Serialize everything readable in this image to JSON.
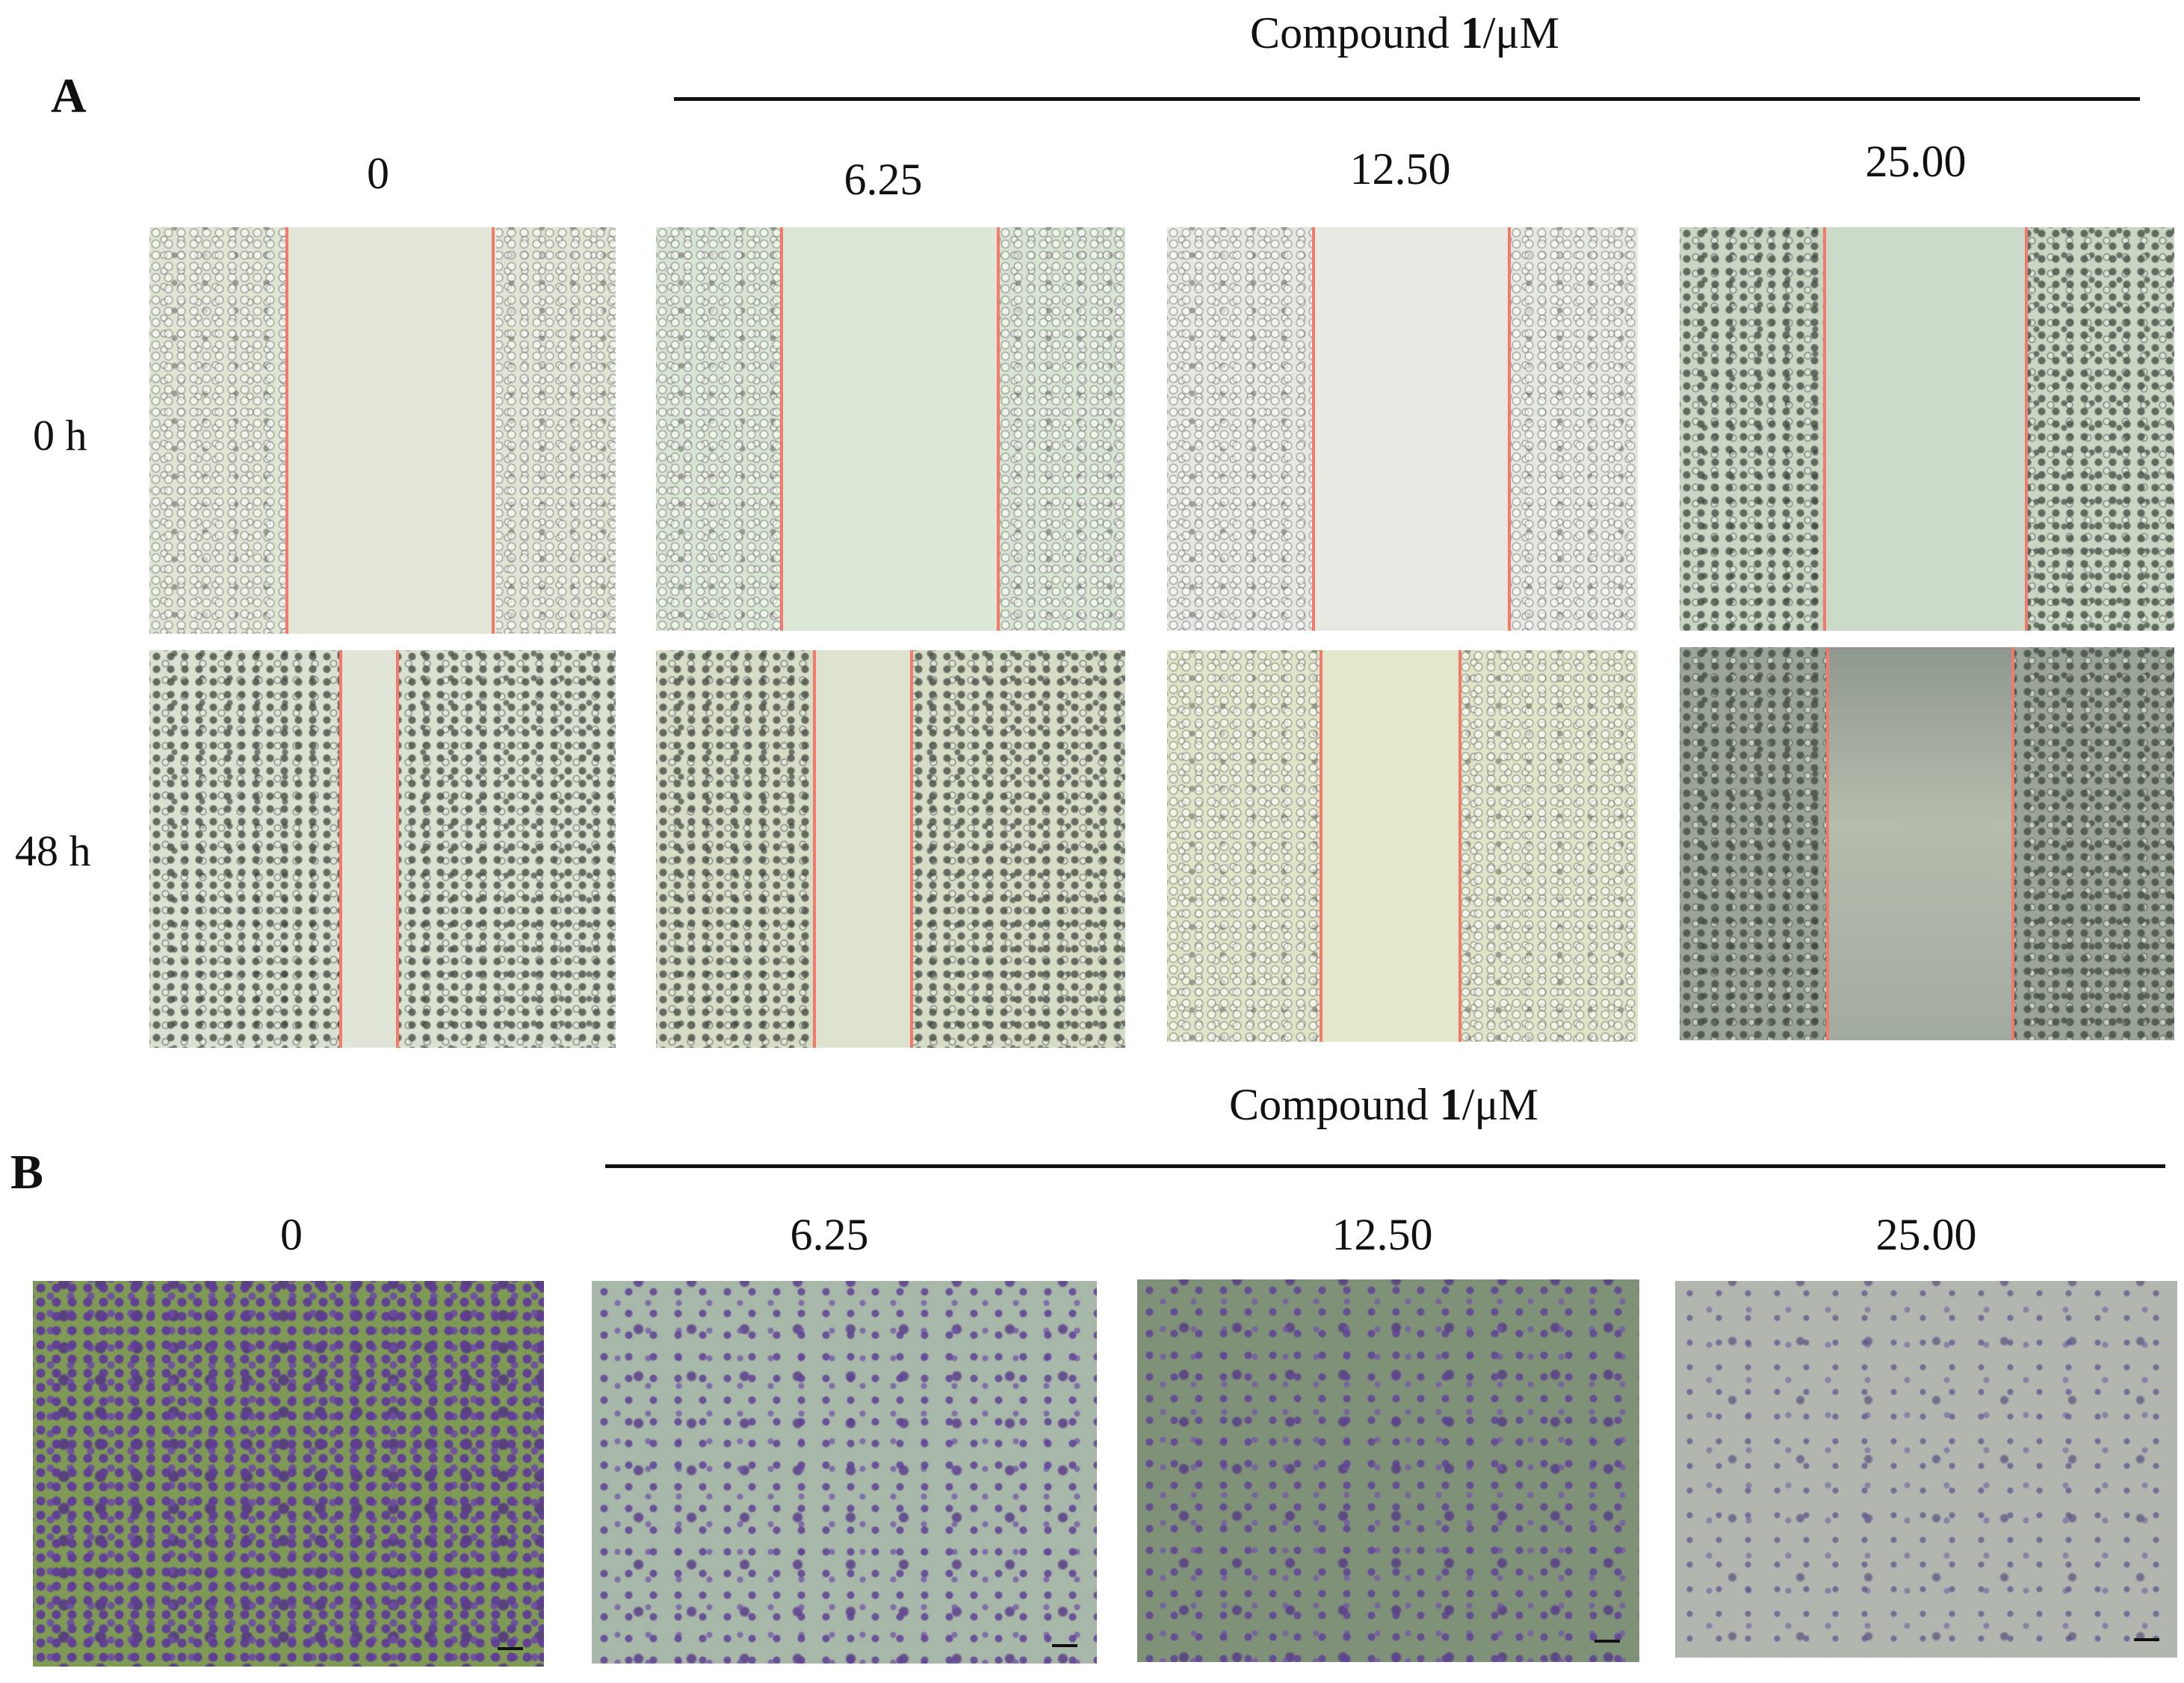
{
  "panel_a": {
    "letter": "A",
    "header_prefix": "Compound ",
    "header_bold": "1",
    "header_suffix": "/μM",
    "columns": [
      "0",
      "6.25",
      "12.50",
      "25.00"
    ],
    "rows": [
      "0 h",
      "48 h"
    ]
  },
  "panel_b": {
    "letter": "B",
    "header_prefix": "Compound ",
    "header_bold": "1",
    "header_suffix": "/μM",
    "columns": [
      "0",
      "6.25",
      "12.50",
      "25.00"
    ]
  },
  "colors": {
    "wound_edge_line": "#f27a6a",
    "scratch_background": "#e4e9dc",
    "transwell_stain": "#6a45a0"
  }
}
